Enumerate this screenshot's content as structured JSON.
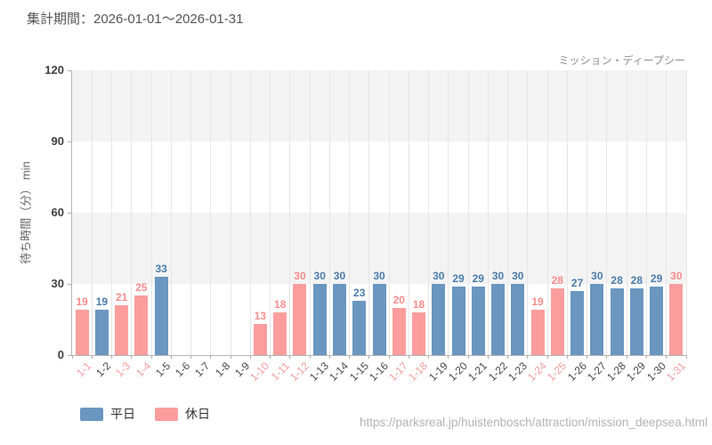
{
  "header": {
    "period_label": "集計期間：2026-01-01〜2026-01-31"
  },
  "chart": {
    "attraction_label": "ミッション・ディープシー",
    "colors": {
      "weekday_bar": "#6a96c0",
      "weekday_text": "#4a7cab",
      "holiday_bar": "#fb9d9d",
      "holiday_text": "#f98c8c",
      "weekday_tick": "#4a4a4a",
      "holiday_tick": "#f49c9c",
      "band_gray": "#f3f3f3",
      "band_white": "#ffffff",
      "gridline": "#e6e6e6",
      "axis": "#b5b5b5"
    }
  },
  "chart_data": {
    "type": "bar",
    "title": "ミッション・ディープシー",
    "categories": [
      "1-1",
      "1-2",
      "1-3",
      "1-4",
      "1-5",
      "1-6",
      "1-7",
      "1-8",
      "1-9",
      "1-10",
      "1-11",
      "1-12",
      "1-13",
      "1-14",
      "1-15",
      "1-16",
      "1-17",
      "1-18",
      "1-19",
      "1-20",
      "1-21",
      "1-22",
      "1-23",
      "1-24",
      "1-25",
      "1-26",
      "1-27",
      "1-28",
      "1-29",
      "1-30",
      "1-31"
    ],
    "day_type": [
      "holiday",
      "weekday",
      "holiday",
      "holiday",
      "weekday",
      "weekday",
      "weekday",
      "weekday",
      "weekday",
      "holiday",
      "holiday",
      "holiday",
      "weekday",
      "weekday",
      "weekday",
      "weekday",
      "holiday",
      "holiday",
      "weekday",
      "weekday",
      "weekday",
      "weekday",
      "weekday",
      "holiday",
      "holiday",
      "weekday",
      "weekday",
      "weekday",
      "weekday",
      "weekday",
      "holiday"
    ],
    "series": [
      {
        "name": "平日",
        "color": "#6a96c0",
        "label_color": "#4a7cab",
        "values": [
          null,
          19,
          null,
          null,
          33,
          null,
          null,
          null,
          null,
          null,
          null,
          null,
          30,
          30,
          23,
          30,
          null,
          null,
          30,
          29,
          29,
          30,
          30,
          null,
          null,
          27,
          30,
          28,
          28,
          29,
          null
        ]
      },
      {
        "name": "休日",
        "color": "#fb9d9d",
        "label_color": "#f98c8c",
        "values": [
          19,
          null,
          21,
          25,
          null,
          null,
          null,
          null,
          null,
          13,
          18,
          30,
          null,
          null,
          null,
          null,
          20,
          18,
          null,
          null,
          null,
          null,
          null,
          19,
          28,
          null,
          null,
          null,
          null,
          null,
          30
        ]
      }
    ],
    "xlabel": "",
    "ylabel": "待ち時間（分） min",
    "ylim": [
      0,
      120
    ],
    "yticks": [
      0,
      30,
      60,
      90,
      120
    ],
    "grid": true,
    "legend_position": "bottom-left",
    "value_labels": "above bars, colored per series"
  },
  "footer": {
    "url": "https://parksreal.jp/huistenbosch/attraction/mission_deepsea.html"
  }
}
